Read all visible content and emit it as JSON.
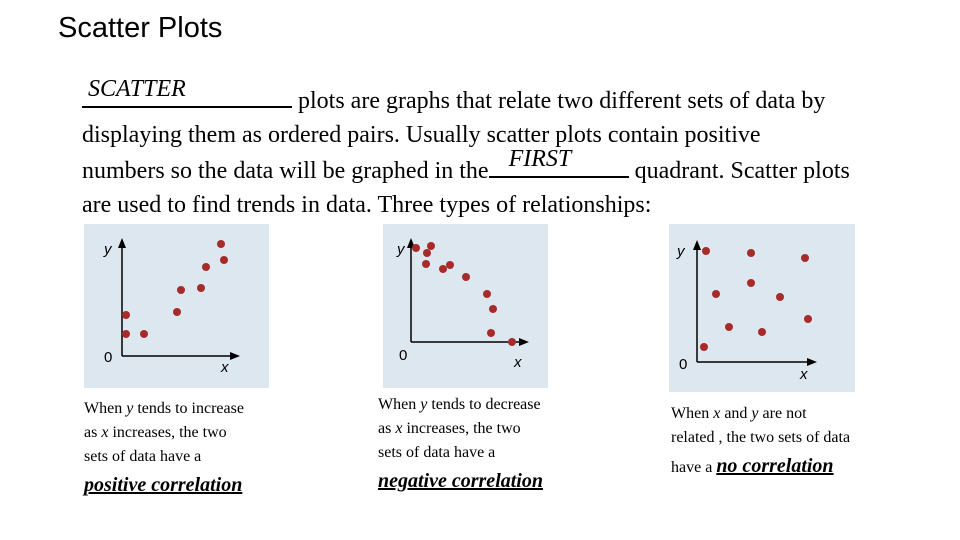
{
  "title": "Scatter Plots",
  "paragraph": {
    "blank1": "SCATTER",
    "text1": " plots are graphs that relate two different sets of data by",
    "line2": "displaying them as ordered pairs. Usually scatter plots contain positive",
    "text3a": "numbers so the data will be graphed in the",
    "blank2": "FIRST",
    "text3b": " quadrant. Scatter plots",
    "line4": "are used to find trends in data. Three types of relationships:"
  },
  "axis_labels": {
    "x": "x",
    "y": "y",
    "origin": "0"
  },
  "dot_color": "#a82b2b",
  "plot_bg": "#dde7f0",
  "captions": {
    "positive": {
      "a": "When ",
      "y": "y",
      "b": " tends to increase",
      "c": "as ",
      "x": "x",
      "d": " increases, the two",
      "e": "sets of data have a",
      "term": "positive correlation"
    },
    "negative": {
      "a": "When ",
      "y": "y",
      "b": " tends to decrease",
      "c": "as ",
      "x": "x",
      "d": " increases, the two",
      "e": "sets of data have a",
      "term": "negative correlation"
    },
    "none": {
      "a": "When ",
      "x": "x",
      "b": " and ",
      "y": "y",
      "c": " are not",
      "d": "related , the two sets of data",
      "e": "have a ",
      "term": "no correlation"
    }
  }
}
